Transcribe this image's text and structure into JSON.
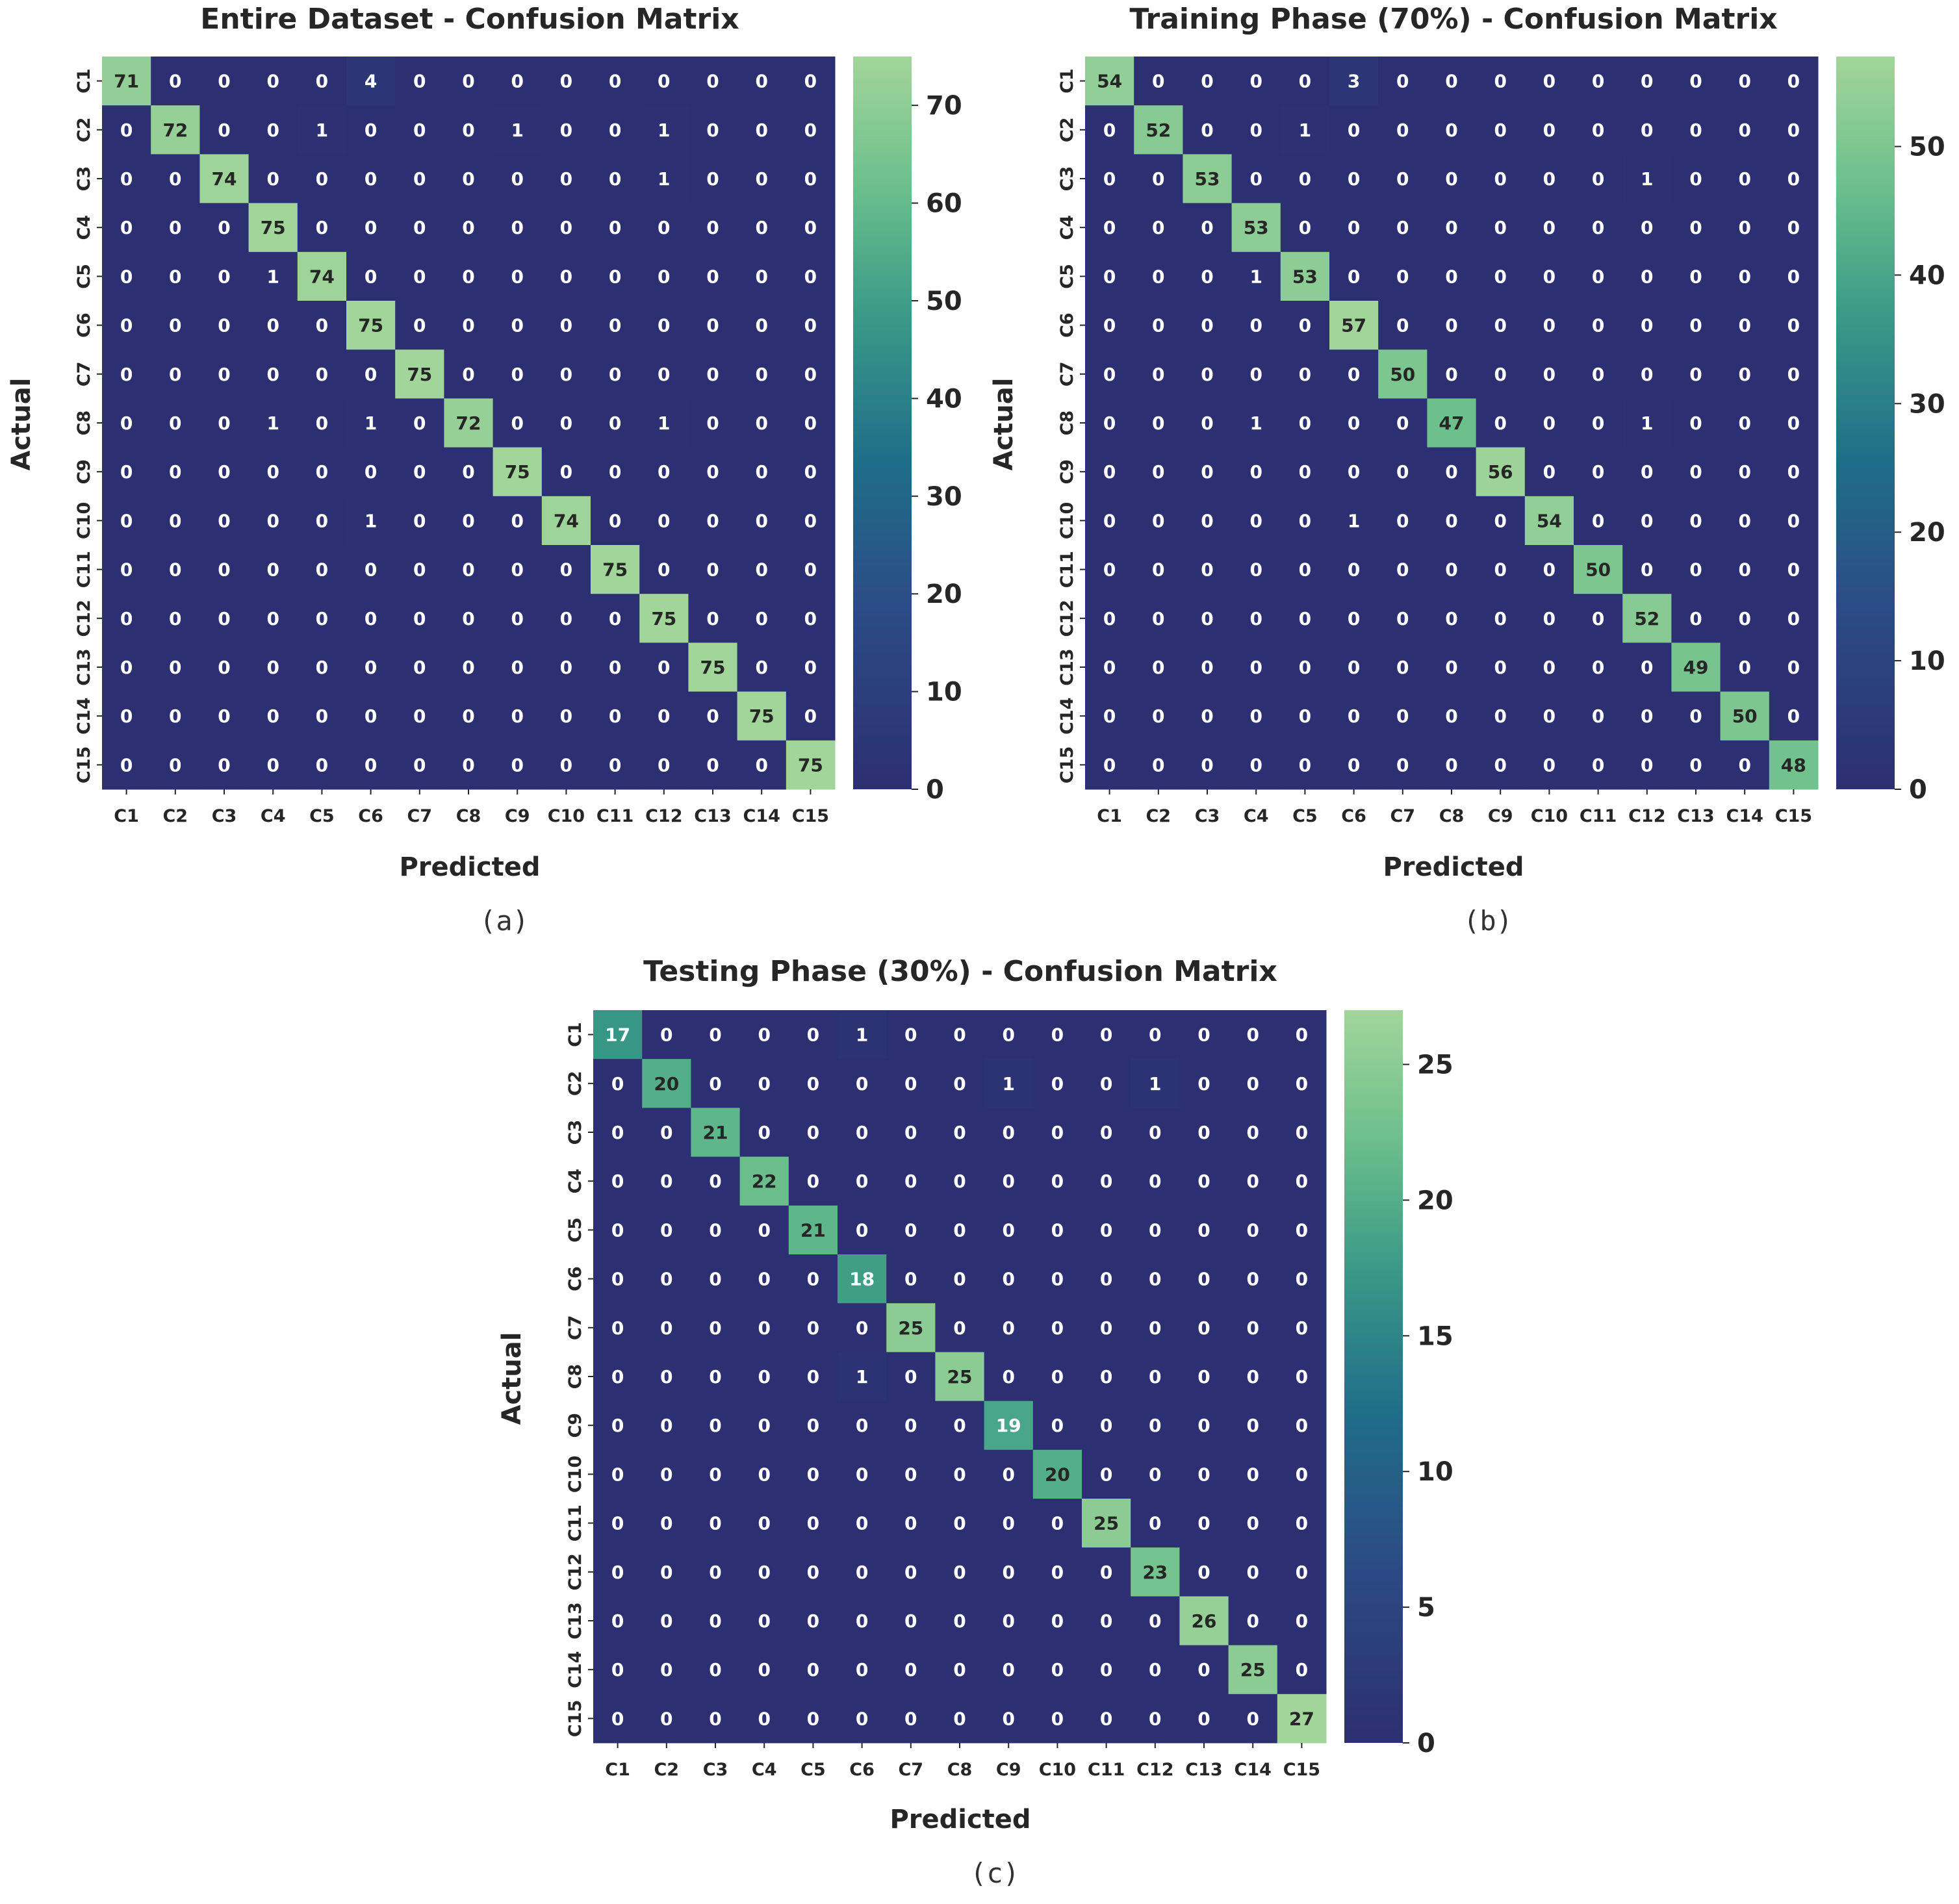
{
  "chart_data": [
    {
      "type": "heatmap",
      "id": "a",
      "title": "Entire Dataset - Confusion Matrix",
      "xlabel": "Predicted",
      "ylabel": "Actual",
      "caption": "(a)",
      "x_categories": [
        "C1",
        "C2",
        "C3",
        "C4",
        "C5",
        "C6",
        "C7",
        "C8",
        "C9",
        "C10",
        "C11",
        "C12",
        "C13",
        "C14",
        "C15"
      ],
      "y_categories": [
        "C1",
        "C2",
        "C3",
        "C4",
        "C5",
        "C6",
        "C7",
        "C8",
        "C9",
        "C10",
        "C11",
        "C12",
        "C13",
        "C14",
        "C15"
      ],
      "colorbar": {
        "range": [
          0,
          75
        ],
        "ticks": [
          0,
          10,
          20,
          30,
          40,
          50,
          60,
          70
        ],
        "low_color": "#2c2f72",
        "mid_color": "#1f6e88",
        "high_color": "#a2d59a"
      },
      "matrix": [
        [
          71,
          0,
          0,
          0,
          0,
          4,
          0,
          0,
          0,
          0,
          0,
          0,
          0,
          0,
          0
        ],
        [
          0,
          72,
          0,
          0,
          1,
          0,
          0,
          0,
          1,
          0,
          0,
          1,
          0,
          0,
          0
        ],
        [
          0,
          0,
          74,
          0,
          0,
          0,
          0,
          0,
          0,
          0,
          0,
          1,
          0,
          0,
          0
        ],
        [
          0,
          0,
          0,
          75,
          0,
          0,
          0,
          0,
          0,
          0,
          0,
          0,
          0,
          0,
          0
        ],
        [
          0,
          0,
          0,
          1,
          74,
          0,
          0,
          0,
          0,
          0,
          0,
          0,
          0,
          0,
          0
        ],
        [
          0,
          0,
          0,
          0,
          0,
          75,
          0,
          0,
          0,
          0,
          0,
          0,
          0,
          0,
          0
        ],
        [
          0,
          0,
          0,
          0,
          0,
          0,
          75,
          0,
          0,
          0,
          0,
          0,
          0,
          0,
          0
        ],
        [
          0,
          0,
          0,
          1,
          0,
          1,
          0,
          72,
          0,
          0,
          0,
          1,
          0,
          0,
          0
        ],
        [
          0,
          0,
          0,
          0,
          0,
          0,
          0,
          0,
          75,
          0,
          0,
          0,
          0,
          0,
          0
        ],
        [
          0,
          0,
          0,
          0,
          0,
          1,
          0,
          0,
          0,
          74,
          0,
          0,
          0,
          0,
          0
        ],
        [
          0,
          0,
          0,
          0,
          0,
          0,
          0,
          0,
          0,
          0,
          75,
          0,
          0,
          0,
          0
        ],
        [
          0,
          0,
          0,
          0,
          0,
          0,
          0,
          0,
          0,
          0,
          0,
          75,
          0,
          0,
          0
        ],
        [
          0,
          0,
          0,
          0,
          0,
          0,
          0,
          0,
          0,
          0,
          0,
          0,
          75,
          0,
          0
        ],
        [
          0,
          0,
          0,
          0,
          0,
          0,
          0,
          0,
          0,
          0,
          0,
          0,
          0,
          75,
          0
        ],
        [
          0,
          0,
          0,
          0,
          0,
          0,
          0,
          0,
          0,
          0,
          0,
          0,
          0,
          0,
          75
        ]
      ]
    },
    {
      "type": "heatmap",
      "id": "b",
      "title": "Training Phase (70%) - Confusion Matrix",
      "xlabel": "Predicted",
      "ylabel": "Actual",
      "caption": "(b)",
      "x_categories": [
        "C1",
        "C2",
        "C3",
        "C4",
        "C5",
        "C6",
        "C7",
        "C8",
        "C9",
        "C10",
        "C11",
        "C12",
        "C13",
        "C14",
        "C15"
      ],
      "y_categories": [
        "C1",
        "C2",
        "C3",
        "C4",
        "C5",
        "C6",
        "C7",
        "C8",
        "C9",
        "C10",
        "C11",
        "C12",
        "C13",
        "C14",
        "C15"
      ],
      "colorbar": {
        "range": [
          0,
          57
        ],
        "ticks": [
          0,
          10,
          20,
          30,
          40,
          50
        ],
        "low_color": "#2c2f72",
        "mid_color": "#1f6e88",
        "high_color": "#a2d59a"
      },
      "matrix": [
        [
          54,
          0,
          0,
          0,
          0,
          3,
          0,
          0,
          0,
          0,
          0,
          0,
          0,
          0,
          0
        ],
        [
          0,
          52,
          0,
          0,
          1,
          0,
          0,
          0,
          0,
          0,
          0,
          0,
          0,
          0,
          0
        ],
        [
          0,
          0,
          53,
          0,
          0,
          0,
          0,
          0,
          0,
          0,
          0,
          1,
          0,
          0,
          0
        ],
        [
          0,
          0,
          0,
          53,
          0,
          0,
          0,
          0,
          0,
          0,
          0,
          0,
          0,
          0,
          0
        ],
        [
          0,
          0,
          0,
          1,
          53,
          0,
          0,
          0,
          0,
          0,
          0,
          0,
          0,
          0,
          0
        ],
        [
          0,
          0,
          0,
          0,
          0,
          57,
          0,
          0,
          0,
          0,
          0,
          0,
          0,
          0,
          0
        ],
        [
          0,
          0,
          0,
          0,
          0,
          0,
          50,
          0,
          0,
          0,
          0,
          0,
          0,
          0,
          0
        ],
        [
          0,
          0,
          0,
          1,
          0,
          0,
          0,
          47,
          0,
          0,
          0,
          1,
          0,
          0,
          0
        ],
        [
          0,
          0,
          0,
          0,
          0,
          0,
          0,
          0,
          56,
          0,
          0,
          0,
          0,
          0,
          0
        ],
        [
          0,
          0,
          0,
          0,
          0,
          1,
          0,
          0,
          0,
          54,
          0,
          0,
          0,
          0,
          0
        ],
        [
          0,
          0,
          0,
          0,
          0,
          0,
          0,
          0,
          0,
          0,
          50,
          0,
          0,
          0,
          0
        ],
        [
          0,
          0,
          0,
          0,
          0,
          0,
          0,
          0,
          0,
          0,
          0,
          52,
          0,
          0,
          0
        ],
        [
          0,
          0,
          0,
          0,
          0,
          0,
          0,
          0,
          0,
          0,
          0,
          0,
          49,
          0,
          0
        ],
        [
          0,
          0,
          0,
          0,
          0,
          0,
          0,
          0,
          0,
          0,
          0,
          0,
          0,
          50,
          0
        ],
        [
          0,
          0,
          0,
          0,
          0,
          0,
          0,
          0,
          0,
          0,
          0,
          0,
          0,
          0,
          48
        ]
      ]
    },
    {
      "type": "heatmap",
      "id": "c",
      "title": "Testing Phase (30%) - Confusion Matrix",
      "xlabel": "Predicted",
      "ylabel": "Actual",
      "caption": "(c)",
      "x_categories": [
        "C1",
        "C2",
        "C3",
        "C4",
        "C5",
        "C6",
        "C7",
        "C8",
        "C9",
        "C10",
        "C11",
        "C12",
        "C13",
        "C14",
        "C15"
      ],
      "y_categories": [
        "C1",
        "C2",
        "C3",
        "C4",
        "C5",
        "C6",
        "C7",
        "C8",
        "C9",
        "C10",
        "C11",
        "C12",
        "C13",
        "C14",
        "C15"
      ],
      "colorbar": {
        "range": [
          0,
          27
        ],
        "ticks": [
          0,
          5,
          10,
          15,
          20,
          25
        ],
        "low_color": "#2c2f72",
        "mid_color": "#1f6e88",
        "high_color": "#a2d59a"
      },
      "matrix": [
        [
          17,
          0,
          0,
          0,
          0,
          1,
          0,
          0,
          0,
          0,
          0,
          0,
          0,
          0,
          0
        ],
        [
          0,
          20,
          0,
          0,
          0,
          0,
          0,
          0,
          1,
          0,
          0,
          1,
          0,
          0,
          0
        ],
        [
          0,
          0,
          21,
          0,
          0,
          0,
          0,
          0,
          0,
          0,
          0,
          0,
          0,
          0,
          0
        ],
        [
          0,
          0,
          0,
          22,
          0,
          0,
          0,
          0,
          0,
          0,
          0,
          0,
          0,
          0,
          0
        ],
        [
          0,
          0,
          0,
          0,
          21,
          0,
          0,
          0,
          0,
          0,
          0,
          0,
          0,
          0,
          0
        ],
        [
          0,
          0,
          0,
          0,
          0,
          18,
          0,
          0,
          0,
          0,
          0,
          0,
          0,
          0,
          0
        ],
        [
          0,
          0,
          0,
          0,
          0,
          0,
          25,
          0,
          0,
          0,
          0,
          0,
          0,
          0,
          0
        ],
        [
          0,
          0,
          0,
          0,
          0,
          1,
          0,
          25,
          0,
          0,
          0,
          0,
          0,
          0,
          0
        ],
        [
          0,
          0,
          0,
          0,
          0,
          0,
          0,
          0,
          19,
          0,
          0,
          0,
          0,
          0,
          0
        ],
        [
          0,
          0,
          0,
          0,
          0,
          0,
          0,
          0,
          0,
          20,
          0,
          0,
          0,
          0,
          0
        ],
        [
          0,
          0,
          0,
          0,
          0,
          0,
          0,
          0,
          0,
          0,
          25,
          0,
          0,
          0,
          0
        ],
        [
          0,
          0,
          0,
          0,
          0,
          0,
          0,
          0,
          0,
          0,
          0,
          23,
          0,
          0,
          0
        ],
        [
          0,
          0,
          0,
          0,
          0,
          0,
          0,
          0,
          0,
          0,
          0,
          0,
          26,
          0,
          0
        ],
        [
          0,
          0,
          0,
          0,
          0,
          0,
          0,
          0,
          0,
          0,
          0,
          0,
          0,
          25,
          0
        ],
        [
          0,
          0,
          0,
          0,
          0,
          0,
          0,
          0,
          0,
          0,
          0,
          0,
          0,
          0,
          27
        ]
      ]
    }
  ]
}
